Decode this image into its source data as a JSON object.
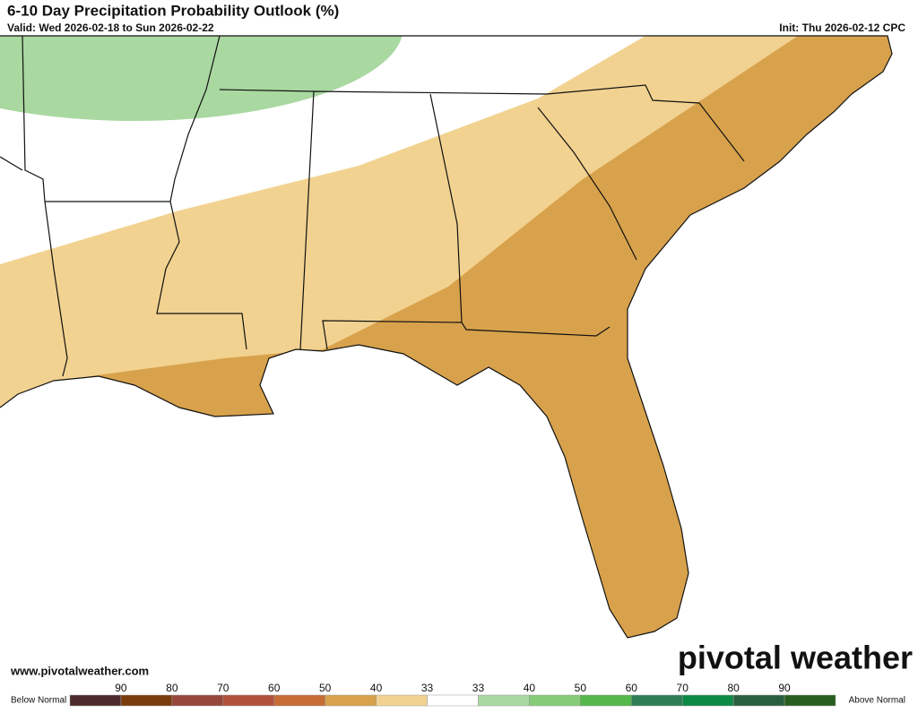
{
  "header": {
    "title": "6-10 Day Precipitation Probability Outlook (%)",
    "valid": "Valid: Wed 2026-02-18 to Sun 2026-02-22",
    "init": "Init: Thu 2026-02-12 CPC"
  },
  "footer": {
    "url": "www.pivotalweather.com",
    "logo": "pivotal weather"
  },
  "legend": {
    "left": "Below Normal",
    "right": "Above Normal",
    "labels": [
      "90",
      "80",
      "70",
      "60",
      "50",
      "40",
      "33",
      "33",
      "40",
      "50",
      "60",
      "70",
      "80",
      "90"
    ],
    "colors": [
      "#4b2b2b",
      "#7a3b0c",
      "#97473a",
      "#b0523b",
      "#c66c35",
      "#d8a24c",
      "#f2d290",
      "#ffffff",
      "#a9d8a0",
      "#86cb78",
      "#54b84a",
      "#2f7d56",
      "#0b8a46",
      "#2a5f3e",
      "#285e1e"
    ]
  }
}
